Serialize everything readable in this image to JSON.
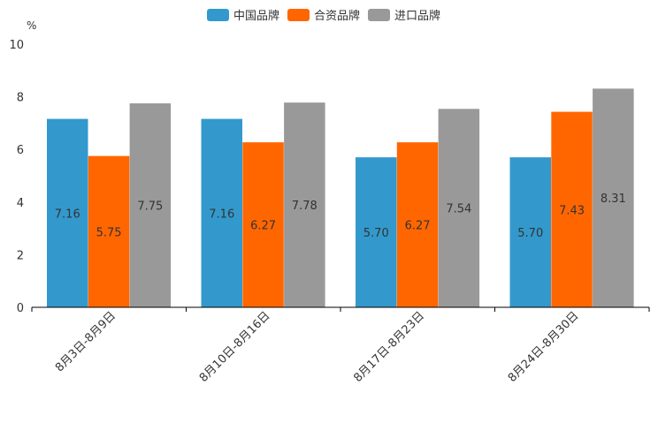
{
  "chart_data": {
    "type": "bar",
    "unit": "%",
    "categories": [
      "8月3日-8月9日",
      "8月10日-8月16日",
      "8月17日-8月23日",
      "8月24日-8月30日"
    ],
    "series": [
      {
        "name": "中国品牌",
        "color": "#3399cc",
        "values": [
          7.16,
          7.16,
          5.7,
          5.7
        ],
        "labels": [
          "7.16",
          "7.16",
          "5.70",
          "5.70"
        ]
      },
      {
        "name": "合资品牌",
        "color": "#ff6600",
        "values": [
          5.75,
          6.27,
          6.27,
          7.43
        ],
        "labels": [
          "5.75",
          "6.27",
          "6.27",
          "7.43"
        ]
      },
      {
        "name": "进口品牌",
        "color": "#999999",
        "values": [
          7.75,
          7.78,
          7.54,
          8.31
        ],
        "labels": [
          "7.75",
          "7.78",
          "7.54",
          "8.31"
        ]
      }
    ],
    "ylim": [
      0,
      10
    ],
    "yticks": [
      "0",
      "2",
      "4",
      "6",
      "8",
      "10"
    ],
    "legend_position": "top-center",
    "grid": false
  }
}
